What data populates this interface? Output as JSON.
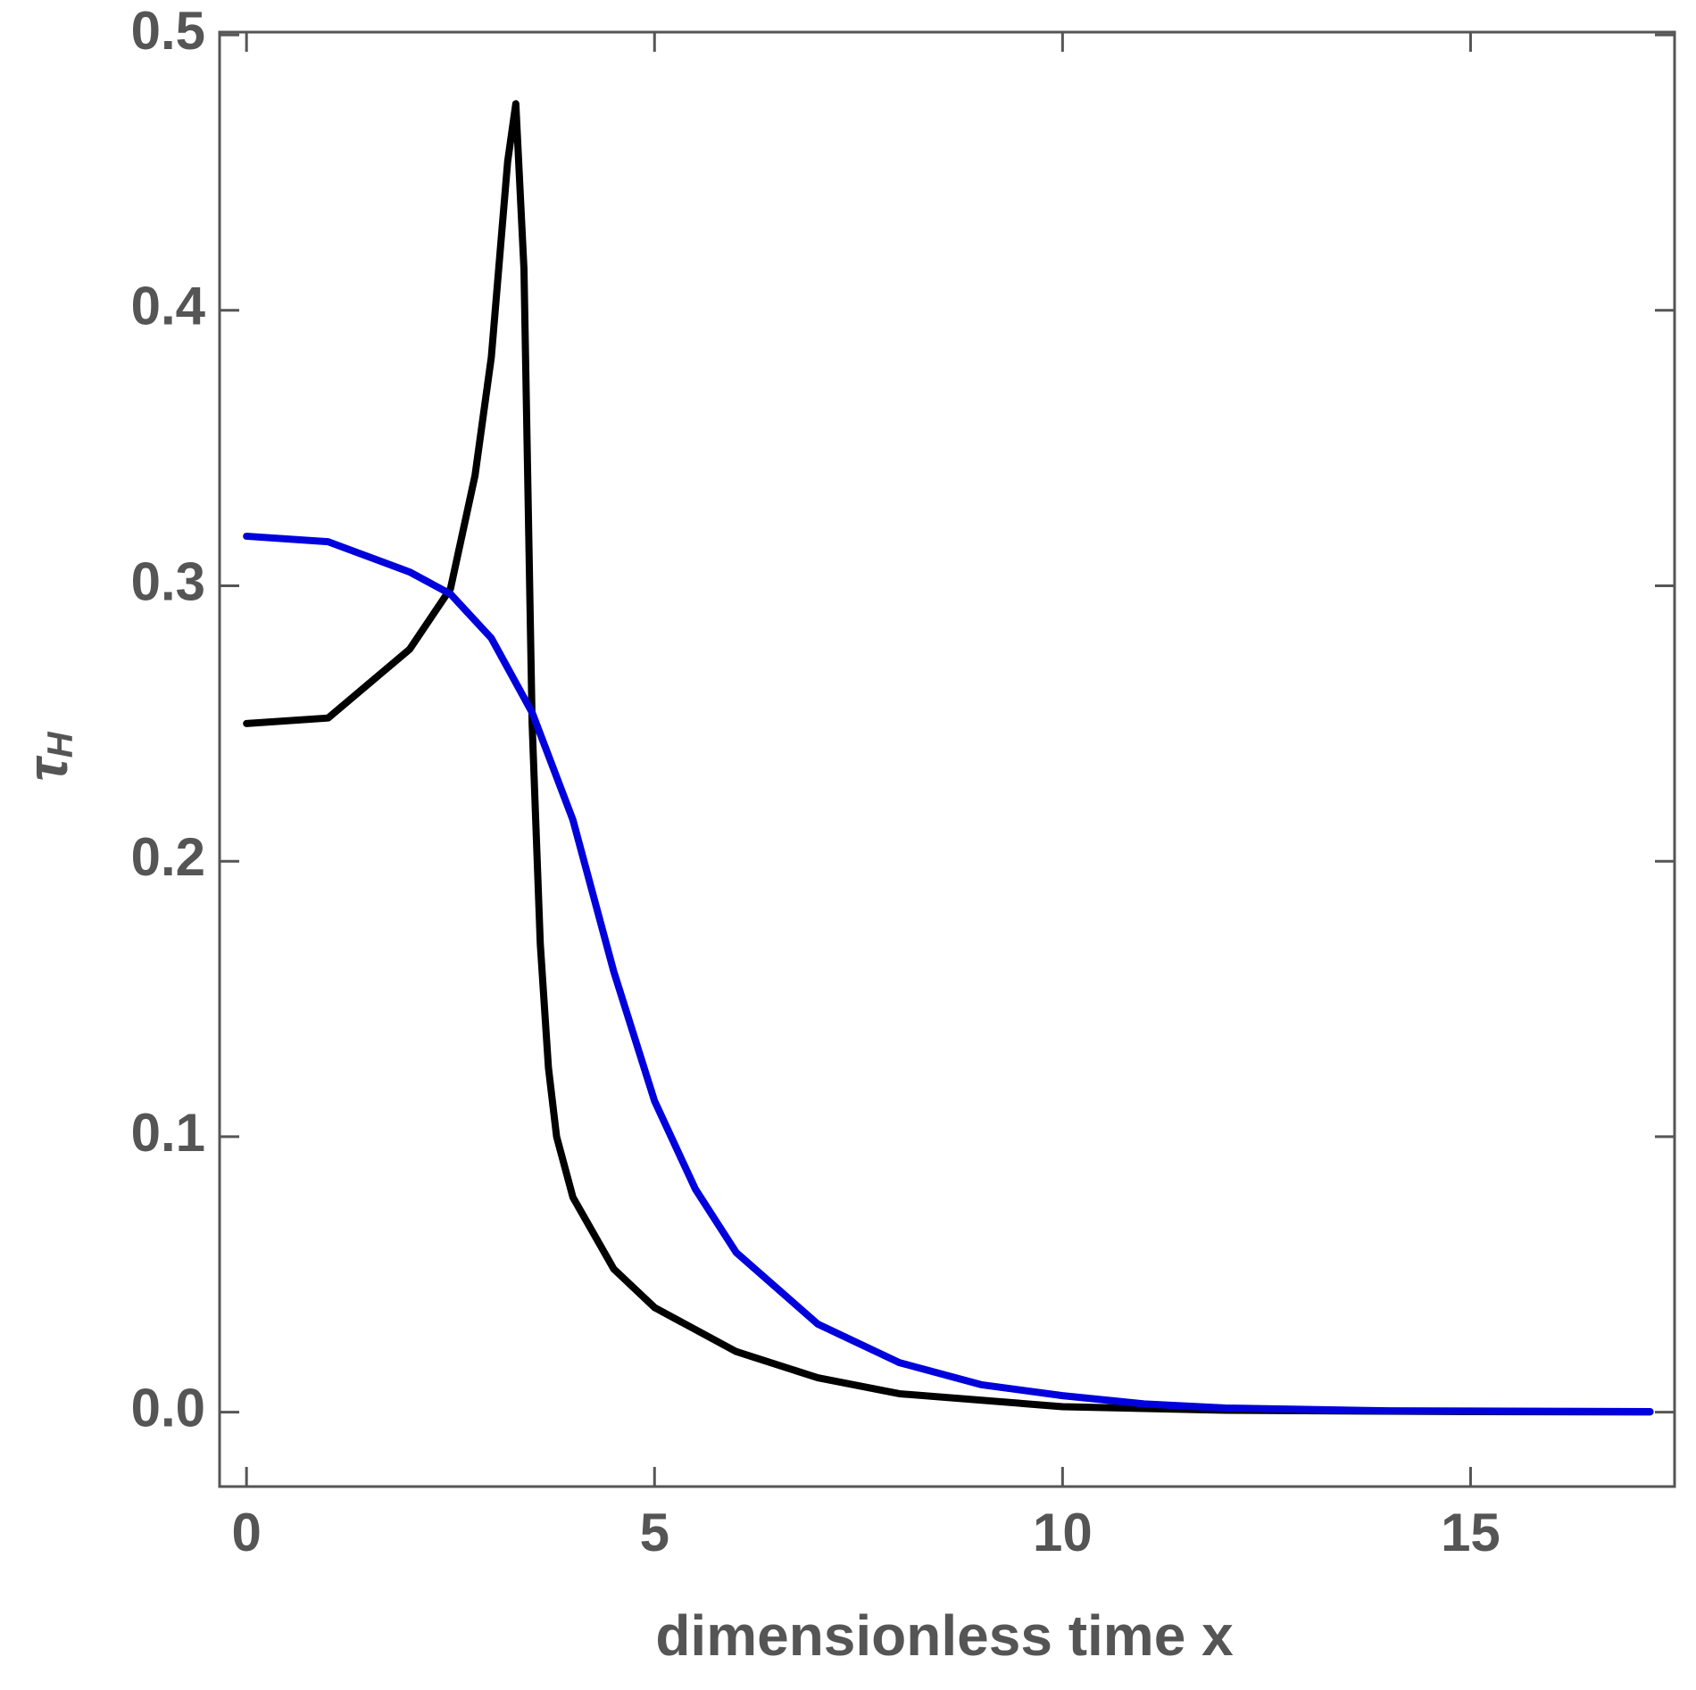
{
  "chart_data": {
    "type": "line",
    "x_label": "dimensionless time x",
    "y_label": "τ",
    "y_label_subscript": "H",
    "xlim": [
      -0.33,
      17.5
    ],
    "ylim": [
      -0.027,
      0.501
    ],
    "xticks": [
      0,
      5,
      10,
      15
    ],
    "yticks": [
      {
        "value": 0,
        "label": "0.0"
      },
      0.1,
      0.2,
      0.3,
      0.4,
      0.5
    ],
    "series": [
      {
        "color": "#000000",
        "x": [
          0,
          1,
          2,
          2.5,
          2.8,
          3,
          3.2,
          3.3,
          3.4,
          3.5,
          3.6,
          3.7,
          3.8,
          4,
          4.5,
          5,
          6,
          7,
          8,
          10,
          12,
          15,
          17.2
        ],
        "values": [
          0.25,
          0.252,
          0.277,
          0.299,
          0.34,
          0.383,
          0.454,
          0.475,
          0.415,
          0.25,
          0.17,
          0.125,
          0.1,
          0.078,
          0.052,
          0.038,
          0.022,
          0.0125,
          0.0067,
          0.002,
          0.0007,
          0.0002,
          0.0001
        ]
      },
      {
        "color": "#0000dd",
        "x": [
          0,
          1,
          2,
          2.5,
          3,
          3.5,
          4,
          4.5,
          5,
          5.5,
          6,
          7,
          8,
          9,
          10,
          11,
          12,
          14,
          17.2
        ],
        "values": [
          0.318,
          0.316,
          0.305,
          0.297,
          0.281,
          0.254,
          0.215,
          0.16,
          0.113,
          0.081,
          0.058,
          0.032,
          0.018,
          0.01,
          0.006,
          0.003,
          0.0015,
          0.0005,
          0.0002
        ]
      }
    ]
  }
}
